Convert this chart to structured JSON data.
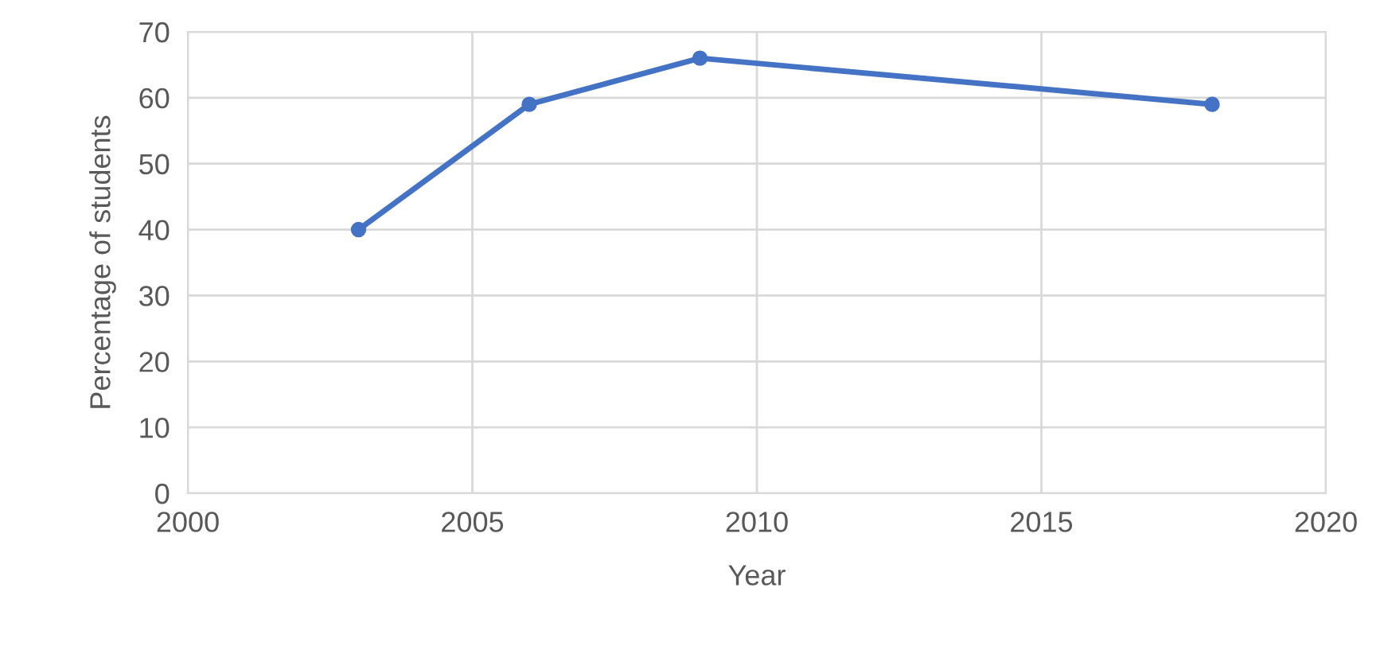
{
  "chart_data": {
    "type": "line",
    "xlabel": "Year",
    "ylabel": "Percentage of students",
    "x": [
      2003,
      2006,
      2009,
      2018
    ],
    "series": [
      {
        "color": "#4472c4",
        "values": [
          40,
          59,
          66,
          59
        ]
      }
    ],
    "xlim": [
      2000,
      2020
    ],
    "xticks": [
      2000,
      2005,
      2010,
      2015,
      2020
    ],
    "ylim": [
      0,
      70
    ],
    "yticks": [
      0,
      10,
      20,
      30,
      40,
      50,
      60,
      70
    ],
    "grid": true,
    "marker": "circle",
    "line_style": "solid"
  }
}
